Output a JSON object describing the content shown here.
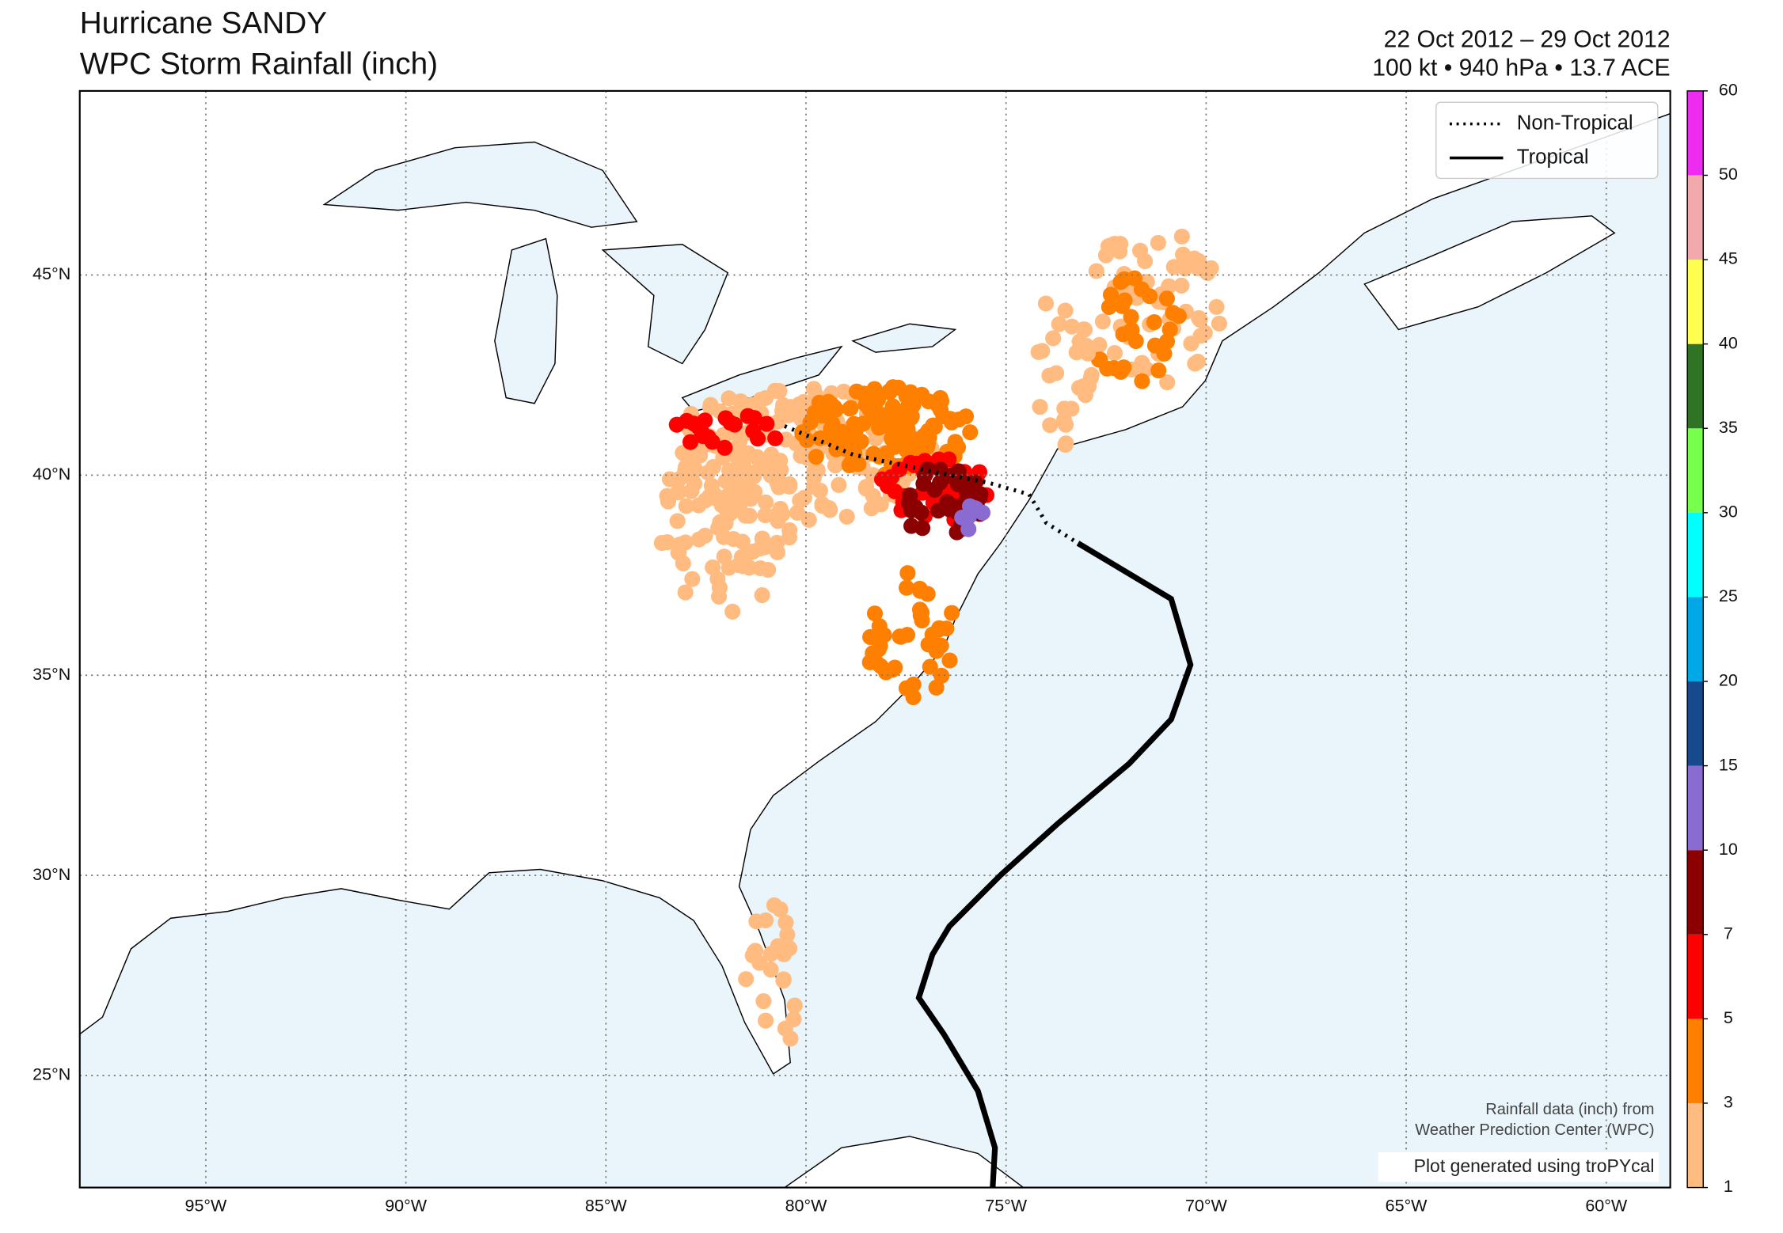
{
  "header": {
    "title": "Hurricane SANDY",
    "subtitle": "WPC Storm Rainfall (inch)",
    "dates": "22 Oct 2012 – 29 Oct 2012",
    "stats": "100 kt • 940 hPa • 13.7 ACE"
  },
  "legend": [
    {
      "label": "Non-Tropical",
      "style": "dotted"
    },
    {
      "label": "Tropical",
      "style": "solid"
    }
  ],
  "map": {
    "lonlim": [
      -98.15,
      -58.4
    ],
    "latlim": [
      22.2,
      49.6
    ],
    "lon_ticks": [
      {
        "value": -95,
        "label": "95°W"
      },
      {
        "value": -90,
        "label": "90°W"
      },
      {
        "value": -85,
        "label": "85°W"
      },
      {
        "value": -80,
        "label": "80°W"
      },
      {
        "value": -75,
        "label": "75°W"
      },
      {
        "value": -70,
        "label": "70°W"
      },
      {
        "value": -65,
        "label": "65°W"
      },
      {
        "value": -60,
        "label": "60°W"
      }
    ],
    "lat_ticks": [
      {
        "value": 25,
        "label": "25°N"
      },
      {
        "value": 30,
        "label": "30°N"
      },
      {
        "value": 35,
        "label": "35°N"
      },
      {
        "value": 40,
        "label": "40°N"
      },
      {
        "value": 45,
        "label": "45°N"
      }
    ],
    "grid": true
  },
  "colorbar": {
    "ticks": [
      1,
      3,
      5,
      7,
      10,
      15,
      20,
      25,
      30,
      35,
      40,
      45,
      50,
      60
    ],
    "colors": [
      "#ffbb80",
      "#ff8000",
      "#ff0000",
      "#8b0000",
      "#8a6bd1",
      "#174a8c",
      "#00a8e8",
      "#00ffff",
      "#78ff4d",
      "#2f7324",
      "#ffff50",
      "#f2a9ab",
      "#ee2cf0"
    ]
  },
  "credits": {
    "source_line1": "Rainfall data (inch) from",
    "source_line2": "Weather Prediction Center (WPC)",
    "generator": "Plot generated using troPYcal"
  }
}
